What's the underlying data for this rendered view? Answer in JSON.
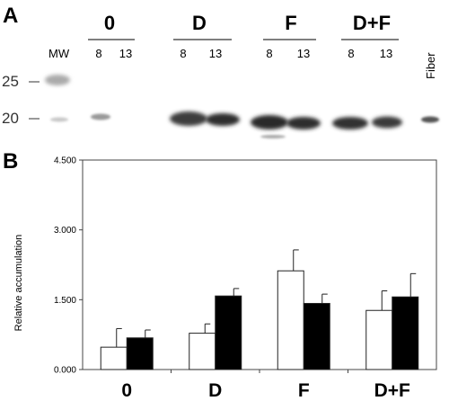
{
  "panel_a": {
    "letter": "A",
    "mw_label": "MW",
    "fiber_label": "Fiber",
    "groups": [
      {
        "label": "0",
        "times": [
          "8",
          "13"
        ]
      },
      {
        "label": "D",
        "times": [
          "8",
          "13"
        ]
      },
      {
        "label": "F",
        "times": [
          "8",
          "13"
        ]
      },
      {
        "label": "D+F",
        "times": [
          "8",
          "13"
        ]
      }
    ],
    "markers": [
      "25",
      "20"
    ]
  },
  "panel_b": {
    "letter": "B"
  },
  "chart_data": {
    "type": "bar",
    "categories": [
      "0",
      "D",
      "F",
      "D+F"
    ],
    "series": [
      {
        "fill": "#ffffff",
        "values": [
          0.48,
          0.78,
          2.12,
          1.27
        ],
        "errors": [
          0.4,
          0.2,
          0.45,
          0.42
        ]
      },
      {
        "fill": "#000000",
        "values": [
          0.68,
          1.58,
          1.42,
          1.56
        ],
        "errors": [
          0.17,
          0.16,
          0.2,
          0.5
        ]
      }
    ],
    "ylabel": "Relative accumulation",
    "ylim": [
      0,
      4.5
    ],
    "yticks": [
      "0.000",
      "1.500",
      "3.000",
      "4.500"
    ],
    "ytick_values": [
      0,
      1.5,
      3,
      4.5
    ]
  }
}
